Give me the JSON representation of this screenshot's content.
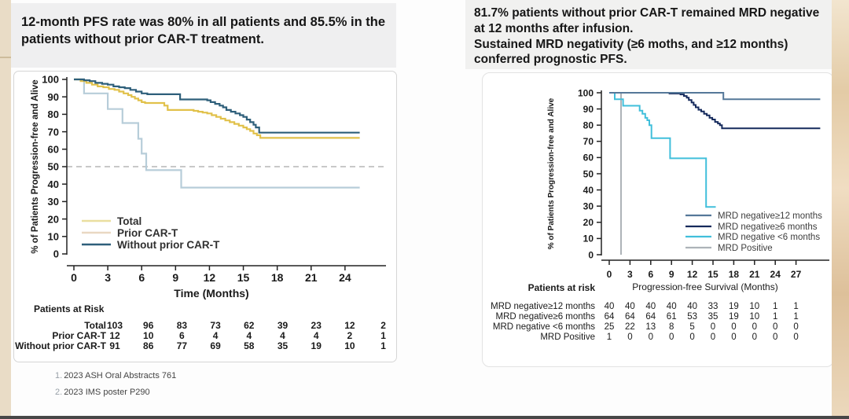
{
  "page": {
    "left_title": "12-month PFS rate was 80% in all patients and 85.5% in the patients without prior CAR-T treatment.",
    "right_title_line1": "81.7% patients without prior CAR-T remained MRD negative at 12 months after infusion.",
    "right_title_line2": "Sustained MRD negativity (≥6 moths, and ≥12 months) conferred prognostic PFS.",
    "footnotes": [
      {
        "num": "1.",
        "text": "2023 ASH Oral Abstracts 761"
      },
      {
        "num": "2.",
        "text": "2023 IMS  poster P290"
      }
    ],
    "colors": {
      "title_block_bg": "#f0f0ef",
      "side_strip": "#e9dcc6",
      "panel_border": "#d6d6d6"
    }
  },
  "chart_data": [
    {
      "type": "line",
      "subtype": "kaplan-meier-step",
      "title": "",
      "ylabel": "% of Patients Progression-free and Alive",
      "xlabel": "Time (Months)",
      "xticks": [
        0,
        3,
        6,
        9,
        12,
        15,
        18,
        21,
        24
      ],
      "yticks": [
        0,
        10,
        20,
        30,
        40,
        50,
        60,
        70,
        80,
        90,
        100
      ],
      "xlim": [
        0,
        27.5
      ],
      "ylim": [
        0,
        100
      ],
      "grid": false,
      "legend_position": "lower-left-inside",
      "reference_line_y": 50,
      "series": [
        {
          "name": "Total",
          "color": "#e1c14a",
          "legend_color": "#eadf9f",
          "z": 2,
          "points": [
            [
              0,
              100
            ],
            [
              0.6,
              99
            ],
            [
              1.1,
              98
            ],
            [
              1.6,
              97
            ],
            [
              2.1,
              96
            ],
            [
              2.6,
              95.5
            ],
            [
              3.1,
              94.5
            ],
            [
              3.6,
              94
            ],
            [
              4.0,
              93
            ],
            [
              4.4,
              92
            ],
            [
              4.8,
              91
            ],
            [
              5.1,
              90
            ],
            [
              5.4,
              89
            ],
            [
              5.7,
              88
            ],
            [
              6.0,
              87
            ],
            [
              6.3,
              86.5
            ],
            [
              8.0,
              85
            ],
            [
              8.3,
              82.5
            ],
            [
              10.6,
              82
            ],
            [
              11.0,
              81.5
            ],
            [
              11.4,
              81
            ],
            [
              11.8,
              80.5
            ],
            [
              12.2,
              79.5
            ],
            [
              12.6,
              78.5
            ],
            [
              13.0,
              77.5
            ],
            [
              13.4,
              76.5
            ],
            [
              13.8,
              75.5
            ],
            [
              14.2,
              74.5
            ],
            [
              14.6,
              73.5
            ],
            [
              15.0,
              72.5
            ],
            [
              15.3,
              71.5
            ],
            [
              15.6,
              70.5
            ],
            [
              15.9,
              69
            ],
            [
              16.2,
              68
            ],
            [
              16.5,
              66.5
            ],
            [
              25.3,
              66.5
            ]
          ]
        },
        {
          "name": "Prior CAR-T",
          "color": "#b7cdd9",
          "legend_color": "#e9d8c2",
          "z": 1,
          "points": [
            [
              0,
              100
            ],
            [
              0.9,
              92
            ],
            [
              3.0,
              83
            ],
            [
              4.3,
              75
            ],
            [
              5.7,
              66
            ],
            [
              6.0,
              57.5
            ],
            [
              6.4,
              48
            ],
            [
              9.5,
              38
            ],
            [
              25.3,
              38
            ]
          ]
        },
        {
          "name": "Without prior CAR-T",
          "color": "#2e5f7a",
          "legend_color": "#2e5f7a",
          "z": 3,
          "points": [
            [
              0,
              100
            ],
            [
              0.9,
              99.5
            ],
            [
              1.4,
              99
            ],
            [
              1.9,
              98
            ],
            [
              2.5,
              97.5
            ],
            [
              3.0,
              97
            ],
            [
              3.5,
              96
            ],
            [
              4.0,
              95.5
            ],
            [
              4.5,
              95
            ],
            [
              5.0,
              94
            ],
            [
              5.5,
              93
            ],
            [
              6.0,
              92
            ],
            [
              6.5,
              91.5
            ],
            [
              9.4,
              88.5
            ],
            [
              11.8,
              88
            ],
            [
              12.1,
              87
            ],
            [
              12.5,
              86
            ],
            [
              12.9,
              85
            ],
            [
              13.2,
              84
            ],
            [
              13.5,
              82.5
            ],
            [
              13.9,
              81.5
            ],
            [
              14.3,
              80.5
            ],
            [
              14.7,
              79.5
            ],
            [
              15.0,
              78.5
            ],
            [
              15.3,
              77
            ],
            [
              15.6,
              75.5
            ],
            [
              15.9,
              74
            ],
            [
              16.1,
              72.5
            ],
            [
              16.4,
              69.5
            ],
            [
              25.3,
              69.5
            ]
          ]
        }
      ],
      "risk_table": {
        "header": "Patients at Risk",
        "rows": [
          {
            "label": "Total",
            "values": [
              "103",
              "96",
              "83",
              "73",
              "62",
              "39",
              "23",
              "12",
              "2"
            ]
          },
          {
            "label": "Prior CAR-T",
            "values": [
              "12",
              "10",
              "6",
              "4",
              "4",
              "4",
              "4",
              "2",
              "1"
            ]
          },
          {
            "label": "Without prior CAR-T",
            "values": [
              "91",
              "86",
              "77",
              "69",
              "58",
              "35",
              "19",
              "10",
              "1"
            ]
          }
        ]
      }
    },
    {
      "type": "line",
      "subtype": "kaplan-meier-step",
      "title": "",
      "ylabel": "% of Patients Progression-free and Alive",
      "xlabel": "Progression-free Survival (Months)",
      "xticks": [
        0,
        3,
        6,
        9,
        12,
        15,
        18,
        21,
        24,
        27
      ],
      "yticks": [
        0,
        10,
        20,
        30,
        40,
        50,
        60,
        70,
        80,
        90,
        100
      ],
      "xlim": [
        0,
        31
      ],
      "ylim": [
        0,
        100
      ],
      "grid": false,
      "legend_position": "lower-right-inside",
      "reference_line_y": null,
      "series": [
        {
          "name": "MRD negative≥12 months",
          "color": "#557899",
          "legend_color": "#557899",
          "z": 4,
          "points": [
            [
              0,
              100
            ],
            [
              16.5,
              96
            ],
            [
              30.5,
              96
            ]
          ]
        },
        {
          "name": "MRD negative≥6 months",
          "color": "#152a5c",
          "legend_color": "#152a5c",
          "z": 3,
          "points": [
            [
              0,
              100
            ],
            [
              8.7,
              99.5
            ],
            [
              10.3,
              99
            ],
            [
              10.8,
              98
            ],
            [
              11.2,
              97
            ],
            [
              11.5,
              95.5
            ],
            [
              11.9,
              94
            ],
            [
              12.2,
              92.5
            ],
            [
              12.5,
              91
            ],
            [
              12.9,
              89.5
            ],
            [
              13.3,
              88.5
            ],
            [
              13.7,
              87
            ],
            [
              14.1,
              86
            ],
            [
              14.5,
              84.5
            ],
            [
              14.9,
              83.5
            ],
            [
              15.3,
              82
            ],
            [
              15.7,
              81
            ],
            [
              16.0,
              80
            ],
            [
              16.3,
              78
            ],
            [
              30.5,
              78
            ]
          ]
        },
        {
          "name": "MRD negative <6 months",
          "color": "#41bfdb",
          "legend_color": "#41bfdb",
          "z": 2,
          "points": [
            [
              0,
              100
            ],
            [
              0.8,
              96
            ],
            [
              2.0,
              92
            ],
            [
              4.4,
              89
            ],
            [
              4.8,
              87
            ],
            [
              5.2,
              84.5
            ],
            [
              5.5,
              83
            ],
            [
              5.8,
              80
            ],
            [
              6.1,
              72
            ],
            [
              8.8,
              59.5
            ],
            [
              14.0,
              29.5
            ],
            [
              15.4,
              29.5
            ]
          ]
        },
        {
          "name": "MRD Positive",
          "color": "#adb3b8",
          "legend_color": "#adb3b8",
          "z": 1,
          "points": [
            [
              0,
              100
            ],
            [
              1.7,
              0
            ]
          ]
        }
      ],
      "risk_table": {
        "header": "Patients at risk",
        "rows": [
          {
            "label": "MRD negative≥12 months",
            "values": [
              "40",
              "40",
              "40",
              "40",
              "40",
              "33",
              "19",
              "10",
              "1",
              "1"
            ]
          },
          {
            "label": "MRD negative≥6 months",
            "values": [
              "64",
              "64",
              "64",
              "61",
              "53",
              "35",
              "19",
              "10",
              "1",
              "1"
            ]
          },
          {
            "label": "MRD negative <6 months",
            "values": [
              "25",
              "22",
              "13",
              "8",
              "5",
              "0",
              "0",
              "0",
              "0",
              "0"
            ]
          },
          {
            "label": "MRD Positive",
            "values": [
              "1",
              "0",
              "0",
              "0",
              "0",
              "0",
              "0",
              "0",
              "0",
              "0"
            ]
          }
        ]
      }
    }
  ]
}
